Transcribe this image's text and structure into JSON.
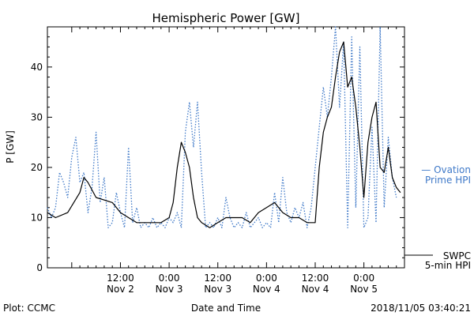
{
  "chart_data": {
    "type": "line",
    "title": "Hemispheric Power [GW]",
    "xlabel": "Date and Time",
    "ylabel": "P [GW]",
    "xlim": [
      "2018-11-01 18:00",
      "2018-11-05 10:00"
    ],
    "ylim": [
      0,
      48
    ],
    "y_ticks": [
      0,
      10,
      20,
      30,
      40
    ],
    "x_ticks": [
      {
        "at": "2018-11-02 12:00",
        "time": "12:00",
        "date": "Nov 2"
      },
      {
        "at": "2018-11-03 00:00",
        "time": "0:00",
        "date": "Nov 3"
      },
      {
        "at": "2018-11-03 12:00",
        "time": "12:00",
        "date": "Nov 3"
      },
      {
        "at": "2018-11-04 00:00",
        "time": "0:00",
        "date": "Nov 4"
      },
      {
        "at": "2018-11-04 12:00",
        "time": "12:00",
        "date": "Nov 4"
      },
      {
        "at": "2018-11-05 00:00",
        "time": "0:00",
        "date": "Nov 5"
      }
    ],
    "grid": false,
    "series": [
      {
        "name": "Ovation Prime HPI",
        "color": "#3f79c8",
        "style": "dotted",
        "points": [
          [
            "2018-11-01 18:00",
            12
          ],
          [
            "2018-11-01 19:00",
            10
          ],
          [
            "2018-11-01 20:00",
            12
          ],
          [
            "2018-11-01 21:00",
            19
          ],
          [
            "2018-11-01 22:00",
            17
          ],
          [
            "2018-11-01 23:00",
            14
          ],
          [
            "2018-11-02 00:00",
            22
          ],
          [
            "2018-11-02 01:00",
            26
          ],
          [
            "2018-11-02 02:00",
            17
          ],
          [
            "2018-11-02 03:00",
            19
          ],
          [
            "2018-11-02 04:00",
            11
          ],
          [
            "2018-11-02 05:00",
            16
          ],
          [
            "2018-11-02 06:00",
            27
          ],
          [
            "2018-11-02 07:00",
            13
          ],
          [
            "2018-11-02 08:00",
            18
          ],
          [
            "2018-11-02 09:00",
            8
          ],
          [
            "2018-11-02 10:00",
            9
          ],
          [
            "2018-11-02 11:00",
            15
          ],
          [
            "2018-11-02 12:00",
            11
          ],
          [
            "2018-11-02 13:00",
            8
          ],
          [
            "2018-11-02 14:00",
            24
          ],
          [
            "2018-11-02 15:00",
            9
          ],
          [
            "2018-11-02 16:00",
            12
          ],
          [
            "2018-11-02 17:00",
            8
          ],
          [
            "2018-11-02 18:00",
            9
          ],
          [
            "2018-11-02 19:00",
            8
          ],
          [
            "2018-11-02 20:00",
            10
          ],
          [
            "2018-11-02 21:00",
            8
          ],
          [
            "2018-11-02 22:00",
            9
          ],
          [
            "2018-11-02 23:00",
            8
          ],
          [
            "2018-11-03 00:00",
            10
          ],
          [
            "2018-11-03 01:00",
            9
          ],
          [
            "2018-11-03 02:00",
            11
          ],
          [
            "2018-11-03 03:00",
            8
          ],
          [
            "2018-11-03 04:00",
            27
          ],
          [
            "2018-11-03 05:00",
            33
          ],
          [
            "2018-11-03 06:00",
            24
          ],
          [
            "2018-11-03 07:00",
            33
          ],
          [
            "2018-11-03 08:00",
            19
          ],
          [
            "2018-11-03 09:00",
            8
          ],
          [
            "2018-11-03 10:00",
            9
          ],
          [
            "2018-11-03 11:00",
            8
          ],
          [
            "2018-11-03 12:00",
            10
          ],
          [
            "2018-11-03 13:00",
            8
          ],
          [
            "2018-11-03 14:00",
            14
          ],
          [
            "2018-11-03 15:00",
            10
          ],
          [
            "2018-11-03 16:00",
            8
          ],
          [
            "2018-11-03 17:00",
            9
          ],
          [
            "2018-11-03 18:00",
            8
          ],
          [
            "2018-11-03 19:00",
            11
          ],
          [
            "2018-11-03 20:00",
            8
          ],
          [
            "2018-11-03 21:00",
            9
          ],
          [
            "2018-11-03 22:00",
            10
          ],
          [
            "2018-11-03 23:00",
            8
          ],
          [
            "2018-11-04 00:00",
            9
          ],
          [
            "2018-11-04 01:00",
            8
          ],
          [
            "2018-11-04 02:00",
            15
          ],
          [
            "2018-11-04 03:00",
            9
          ],
          [
            "2018-11-04 04:00",
            18
          ],
          [
            "2018-11-04 05:00",
            11
          ],
          [
            "2018-11-04 06:00",
            9
          ],
          [
            "2018-11-04 07:00",
            12
          ],
          [
            "2018-11-04 08:00",
            10
          ],
          [
            "2018-11-04 09:00",
            13
          ],
          [
            "2018-11-04 10:00",
            8
          ],
          [
            "2018-11-04 11:00",
            12
          ],
          [
            "2018-11-04 12:00",
            20
          ],
          [
            "2018-11-04 13:00",
            28
          ],
          [
            "2018-11-04 14:00",
            36
          ],
          [
            "2018-11-04 15:00",
            30
          ],
          [
            "2018-11-04 16:00",
            38
          ],
          [
            "2018-11-04 17:00",
            48
          ],
          [
            "2018-11-04 18:00",
            32
          ],
          [
            "2018-11-04 19:00",
            45
          ],
          [
            "2018-11-04 20:00",
            8
          ],
          [
            "2018-11-04 21:00",
            46
          ],
          [
            "2018-11-04 22:00",
            12
          ],
          [
            "2018-11-04 23:00",
            44
          ],
          [
            "2018-11-05 00:00",
            8
          ],
          [
            "2018-11-05 01:00",
            10
          ],
          [
            "2018-11-05 02:00",
            28
          ],
          [
            "2018-11-05 03:00",
            9
          ],
          [
            "2018-11-05 04:00",
            48
          ],
          [
            "2018-11-05 05:00",
            12
          ],
          [
            "2018-11-05 06:00",
            26
          ],
          [
            "2018-11-05 07:00",
            18
          ],
          [
            "2018-11-05 08:00",
            14
          ]
        ]
      },
      {
        "name": "SWPC 5-min HPI",
        "color": "#000000",
        "style": "solid",
        "points": [
          [
            "2018-11-01 18:00",
            11
          ],
          [
            "2018-11-01 20:00",
            10
          ],
          [
            "2018-11-01 23:00",
            11
          ],
          [
            "2018-11-02 02:00",
            15
          ],
          [
            "2018-11-02 03:00",
            18
          ],
          [
            "2018-11-02 04:00",
            17
          ],
          [
            "2018-11-02 06:00",
            14
          ],
          [
            "2018-11-02 10:00",
            13
          ],
          [
            "2018-11-02 12:00",
            11
          ],
          [
            "2018-11-02 14:00",
            10
          ],
          [
            "2018-11-02 16:00",
            9
          ],
          [
            "2018-11-02 22:00",
            9
          ],
          [
            "2018-11-03 00:00",
            10
          ],
          [
            "2018-11-03 01:00",
            13
          ],
          [
            "2018-11-03 02:00",
            20
          ],
          [
            "2018-11-03 03:00",
            25
          ],
          [
            "2018-11-03 04:00",
            23
          ],
          [
            "2018-11-03 05:00",
            20
          ],
          [
            "2018-11-03 06:00",
            14
          ],
          [
            "2018-11-03 07:00",
            10
          ],
          [
            "2018-11-03 08:00",
            9
          ],
          [
            "2018-11-03 10:00",
            8
          ],
          [
            "2018-11-03 12:00",
            9
          ],
          [
            "2018-11-03 14:00",
            10
          ],
          [
            "2018-11-03 18:00",
            10
          ],
          [
            "2018-11-03 20:00",
            9
          ],
          [
            "2018-11-03 22:00",
            11
          ],
          [
            "2018-11-04 00:00",
            12
          ],
          [
            "2018-11-04 02:00",
            13
          ],
          [
            "2018-11-04 04:00",
            11
          ],
          [
            "2018-11-04 06:00",
            10
          ],
          [
            "2018-11-04 08:00",
            10
          ],
          [
            "2018-11-04 10:00",
            9
          ],
          [
            "2018-11-04 12:00",
            9
          ],
          [
            "2018-11-04 13:00",
            20
          ],
          [
            "2018-11-04 14:00",
            27
          ],
          [
            "2018-11-04 15:00",
            30
          ],
          [
            "2018-11-04 16:00",
            32
          ],
          [
            "2018-11-04 17:00",
            38
          ],
          [
            "2018-11-04 18:00",
            43
          ],
          [
            "2018-11-04 19:00",
            45
          ],
          [
            "2018-11-04 20:00",
            36
          ],
          [
            "2018-11-04 21:00",
            38
          ],
          [
            "2018-11-04 22:00",
            32
          ],
          [
            "2018-11-04 23:00",
            24
          ],
          [
            "2018-11-05 00:00",
            14
          ],
          [
            "2018-11-05 01:00",
            25
          ],
          [
            "2018-11-05 02:00",
            30
          ],
          [
            "2018-11-05 03:00",
            33
          ],
          [
            "2018-11-05 04:00",
            20
          ],
          [
            "2018-11-05 05:00",
            19
          ],
          [
            "2018-11-05 06:00",
            24
          ],
          [
            "2018-11-05 07:00",
            18
          ],
          [
            "2018-11-05 08:00",
            16
          ],
          [
            "2018-11-05 09:00",
            15
          ]
        ]
      }
    ],
    "legend": {
      "placement": "right",
      "ovation_lines": [
        "— Ovation",
        "Prime HPI"
      ],
      "swpc_lines": [
        "SWPC",
        "5-min HPI"
      ]
    },
    "footer": {
      "left": "Plot: CCMC",
      "right": "2018/11/05 03:40:21"
    }
  }
}
